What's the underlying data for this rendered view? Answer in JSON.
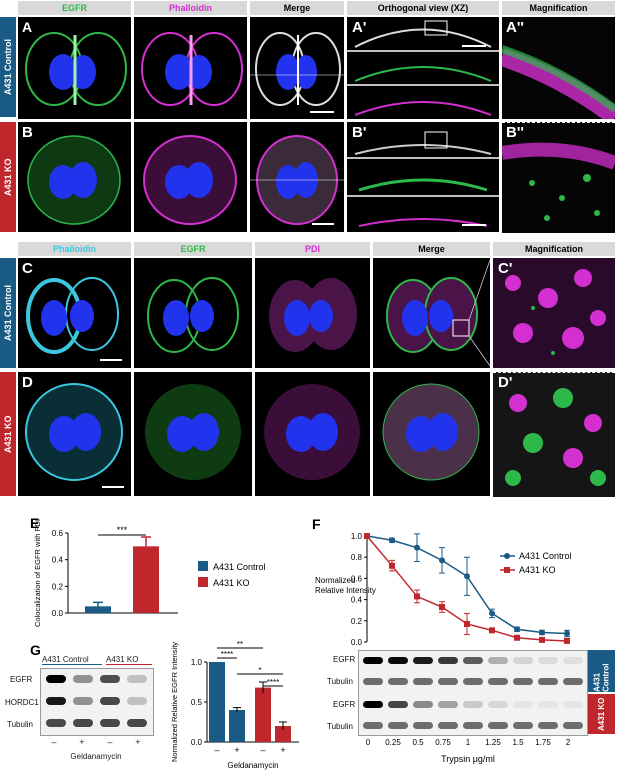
{
  "colors": {
    "egfr": "#2db84a",
    "phalloidin": "#d42fd0",
    "cyan": "#3ac8e0",
    "blue": "#2233ee",
    "control": "#1a5b86",
    "ko": "#c0272d"
  },
  "top": {
    "headers": [
      "EGFR",
      "Phalloidin",
      "Merge",
      "Orthogonal view (XZ)",
      "Magnification"
    ],
    "row_a": {
      "label": "A431 Control",
      "letters": [
        "A",
        "A'",
        "A''"
      ]
    },
    "row_b": {
      "label": "A431 KO",
      "letters": [
        "B",
        "B'",
        "B''"
      ]
    }
  },
  "mid": {
    "headers": [
      "Phalloidin",
      "EGFR",
      "PDI",
      "Merge",
      "Magnification"
    ],
    "row_c": {
      "label": "A431 Control",
      "letters": [
        "C",
        "C'"
      ]
    },
    "row_d": {
      "label": "A431 KO",
      "letters": [
        "D",
        "D'"
      ]
    }
  },
  "panel_e": {
    "letter": "E",
    "sig": "***",
    "legend": [
      "A431 Control",
      "A431 KO"
    ]
  },
  "panel_f": {
    "letter": "F",
    "legend": [
      "A431 Control",
      "A431 KO"
    ],
    "blot_labels": [
      "EGFR",
      "Tubulin",
      "EGFR",
      "Tubulin"
    ],
    "side_labels": [
      "A431 Control",
      "A431 KO"
    ]
  },
  "panel_g": {
    "letter": "G",
    "groups": [
      "A431 Control",
      "A431 KO"
    ],
    "blot_labels": [
      "EGFR",
      "HORDC1",
      "Tubulin"
    ],
    "treat": [
      "–",
      "+",
      "–",
      "+"
    ],
    "xlabel": "Geldanamycin",
    "sig": [
      "**",
      "****",
      "*",
      "****"
    ]
  },
  "chart_data": [
    {
      "type": "bar",
      "categories": [
        "A431 Control",
        "A431 KO"
      ],
      "values": [
        0.05,
        0.5
      ],
      "errors": [
        0.03,
        0.07
      ],
      "ylabel": "Colocalization of EGFR with PDI",
      "ylim": [
        0,
        0.6
      ],
      "yticks": [
        "0.0",
        "0.2",
        "0.4",
        "0.6"
      ]
    },
    {
      "type": "line",
      "x": [
        0,
        0.25,
        0.5,
        0.75,
        1,
        1.25,
        1.5,
        1.75,
        2
      ],
      "xticks": [
        "0",
        "0.25",
        "0.5",
        "0.75",
        "1",
        "1.25",
        "1.5",
        "1.75",
        "2"
      ],
      "series": [
        {
          "name": "A431 Control",
          "values": [
            1.0,
            0.96,
            0.89,
            0.77,
            0.62,
            0.27,
            0.12,
            0.09,
            0.08
          ],
          "errors": [
            0,
            0.02,
            0.13,
            0.12,
            0.18,
            0.04,
            0.02,
            0.02,
            0.03
          ]
        },
        {
          "name": "A431 KO",
          "values": [
            1.0,
            0.72,
            0.43,
            0.33,
            0.17,
            0.11,
            0.04,
            0.02,
            0.01
          ],
          "errors": [
            0,
            0.05,
            0.06,
            0.05,
            0.1,
            0.02,
            0.01,
            0.01,
            0.01
          ]
        }
      ],
      "ylabel": "Normalized Relative Intensity",
      "xlabel": "Trypsin μg/ml",
      "ylim": [
        0,
        1.0
      ],
      "yticks": [
        "0.0",
        "0.2",
        "0.4",
        "0.6",
        "0.8",
        "1.0"
      ]
    },
    {
      "type": "bar",
      "categories": [
        "–",
        "+",
        "–",
        "+"
      ],
      "values": [
        1.0,
        0.4,
        0.68,
        0.2
      ],
      "errors": [
        0,
        0.03,
        0.07,
        0.05
      ],
      "ylabel": "Normalized Relative EGFR Intensity",
      "xlabel": "Geldanamycin",
      "ylim": [
        0,
        1.0
      ],
      "yticks": [
        "0.0",
        "0.5",
        "1.0"
      ]
    }
  ]
}
